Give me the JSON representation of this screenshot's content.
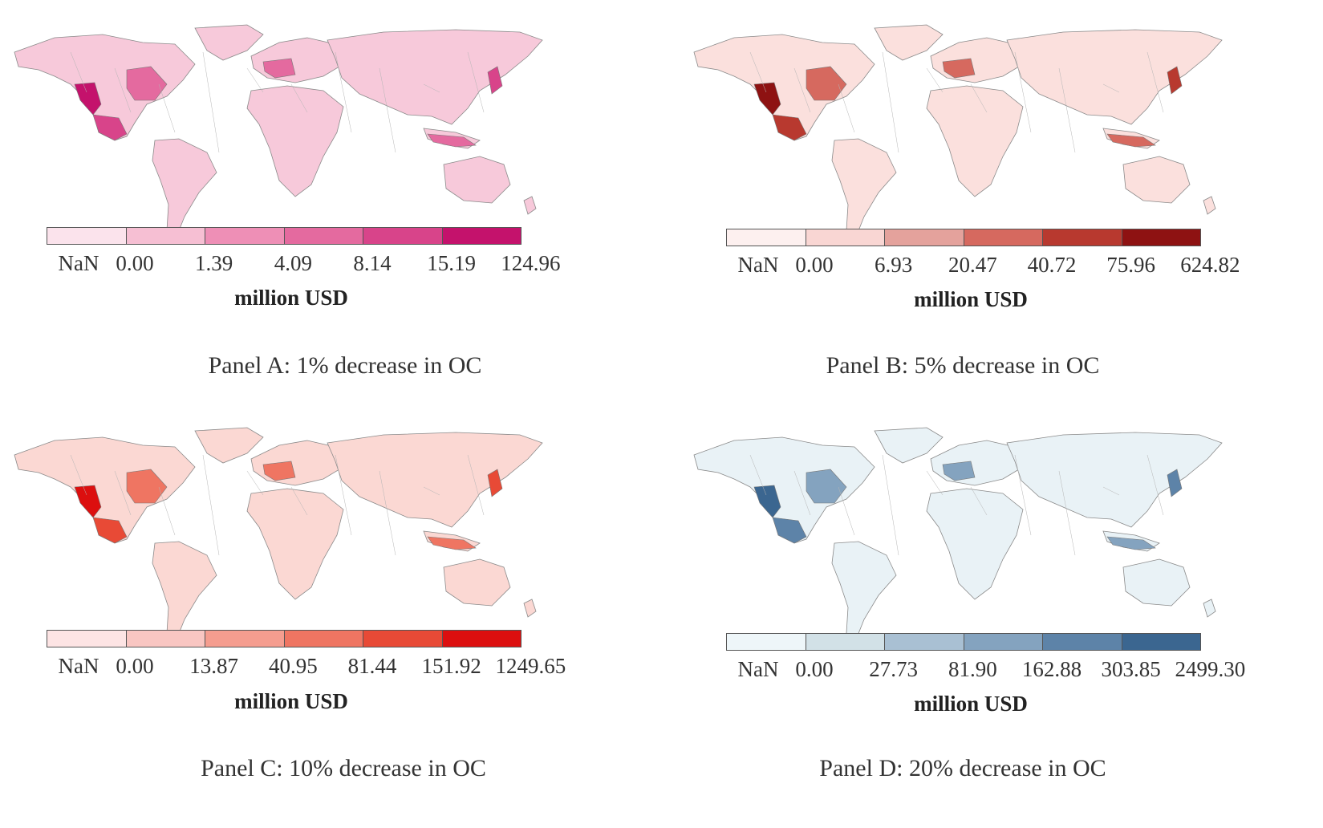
{
  "panels": [
    {
      "id": "A",
      "title": "Panel A: 1% decrease in OC",
      "unit": "million USD",
      "ticks": [
        "NaN",
        "0.00",
        "1.39",
        "4.09",
        "8.14",
        "15.19",
        "124.96"
      ],
      "colors": [
        "#fbe3ec",
        "#f6bfd3",
        "#ee8fb6",
        "#e46a9f",
        "#d8448a",
        "#c4126c"
      ],
      "land": "#f7c9da",
      "land_dark": "#e2619b"
    },
    {
      "id": "B",
      "title": "Panel B: 5% decrease in OC",
      "unit": "million USD",
      "ticks": [
        "NaN",
        "0.00",
        "6.93",
        "20.47",
        "40.72",
        "75.96",
        "624.82"
      ],
      "colors": [
        "#fdf0ef",
        "#f9d6d3",
        "#e4a29c",
        "#d6695f",
        "#b8392f",
        "#8e1212"
      ],
      "land": "#fbe0dd",
      "land_dark": "#c0473b"
    },
    {
      "id": "C",
      "title": "Panel C: 10% decrease in OC",
      "unit": "million USD",
      "ticks": [
        "NaN",
        "0.00",
        "13.87",
        "40.95",
        "81.44",
        "151.92",
        "1249.65"
      ],
      "colors": [
        "#fde4e4",
        "#f9c6c2",
        "#f59d8f",
        "#ef7562",
        "#e84a36",
        "#dc0f0f"
      ],
      "land": "#fbd8d3",
      "land_dark": "#e8503b"
    },
    {
      "id": "D",
      "title": "Panel D: 20% decrease in OC",
      "unit": "million USD",
      "ticks": [
        "NaN",
        "0.00",
        "27.73",
        "81.90",
        "162.88",
        "303.85",
        "2499.30"
      ],
      "colors": [
        "#eef6f9",
        "#d2e1e7",
        "#a9c0d3",
        "#84a3bf",
        "#5d83a8",
        "#3b6690"
      ],
      "land": "#e9f2f6",
      "land_dark": "#5a82a8"
    }
  ]
}
